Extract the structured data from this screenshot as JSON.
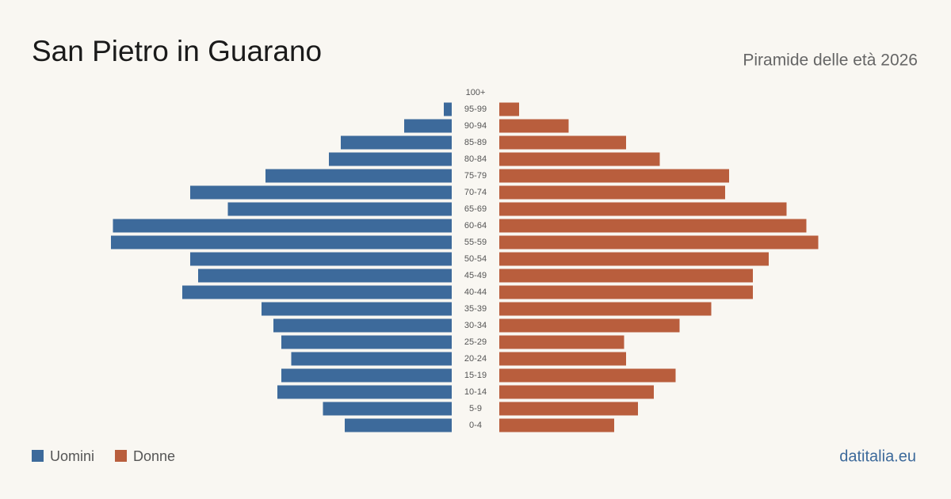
{
  "chart_data": {
    "type": "pyramid",
    "title": "San Pietro in Guarano",
    "subtitle": "Piramide delle età 2026",
    "source": "datitalia.eu",
    "categories": [
      "100+",
      "95-99",
      "90-94",
      "85-89",
      "80-84",
      "75-79",
      "70-74",
      "65-69",
      "60-64",
      "55-59",
      "50-54",
      "45-49",
      "40-44",
      "35-39",
      "30-34",
      "25-29",
      "20-24",
      "15-19",
      "10-14",
      "5-9",
      "0-4"
    ],
    "series": [
      {
        "name": "Uomini",
        "color": "#3d6a9b",
        "values": [
          0,
          4,
          24,
          56,
          62,
          94,
          132,
          113,
          171,
          172,
          132,
          128,
          136,
          96,
          90,
          86,
          81,
          86,
          88,
          65,
          54
        ]
      },
      {
        "name": "Donne",
        "color": "#b95e3d",
        "values": [
          0,
          10,
          35,
          64,
          81,
          116,
          114,
          145,
          155,
          161,
          136,
          128,
          128,
          107,
          91,
          63,
          64,
          89,
          78,
          70,
          58
        ]
      }
    ]
  }
}
